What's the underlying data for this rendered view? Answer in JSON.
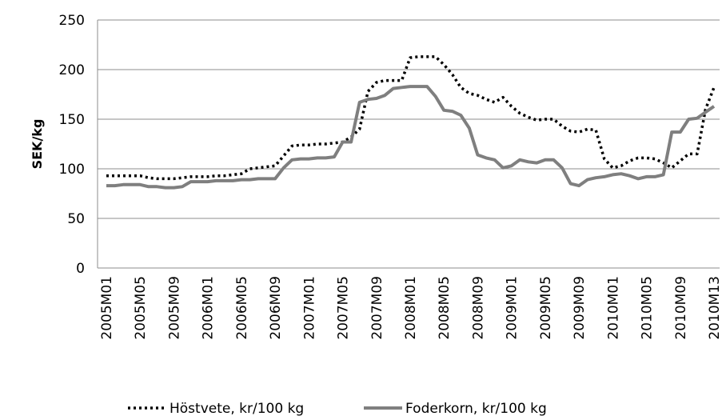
{
  "chart_data": {
    "type": "line",
    "y_label": "SEK/kg",
    "categories": [
      "2005M01",
      null,
      null,
      null,
      "2005M05",
      null,
      null,
      null,
      "2005M09",
      null,
      null,
      null,
      "2006M01",
      null,
      null,
      null,
      "2006M05",
      null,
      null,
      null,
      "2006M09",
      null,
      null,
      null,
      "2007M01",
      null,
      null,
      null,
      "2007M05",
      null,
      null,
      null,
      "2007M09",
      null,
      null,
      null,
      "2008M01",
      null,
      null,
      null,
      "2008M05",
      null,
      null,
      null,
      "2008M09",
      null,
      null,
      null,
      "2009M01",
      null,
      null,
      null,
      "2009M05",
      null,
      null,
      null,
      "2009M09",
      null,
      null,
      null,
      "2010M01",
      null,
      null,
      null,
      "2010M05",
      null,
      null,
      null,
      "2010M09",
      null,
      null,
      null,
      "2010M13"
    ],
    "series": [
      {
        "name": "Höstvete, kr/100 kg",
        "color": "#000000",
        "dash": "dotted",
        "values": [
          93,
          93,
          93,
          93,
          93,
          91,
          90,
          90,
          90,
          91,
          92,
          92,
          92,
          93,
          93,
          94,
          95,
          100,
          101,
          102,
          103,
          113,
          123,
          124,
          124,
          125,
          125,
          126,
          127,
          132,
          140,
          178,
          187,
          189,
          189,
          189,
          212,
          213,
          213,
          213,
          205,
          195,
          182,
          176,
          174,
          170,
          167,
          172,
          163,
          156,
          152,
          149,
          150,
          150,
          143,
          138,
          137,
          140,
          139,
          110,
          101,
          103,
          108,
          111,
          111,
          110,
          106,
          101,
          108,
          115,
          115,
          160,
          182
        ]
      },
      {
        "name": "Foderkorn, kr/100 kg",
        "color": "#7f7f7f",
        "dash": "solid",
        "values": [
          83,
          83,
          84,
          84,
          84,
          82,
          82,
          81,
          81,
          82,
          87,
          87,
          87,
          88,
          88,
          88,
          89,
          89,
          90,
          90,
          90,
          101,
          109,
          110,
          110,
          111,
          111,
          112,
          127,
          127,
          167,
          170,
          171,
          174,
          181,
          182,
          183,
          183,
          183,
          173,
          159,
          158,
          154,
          141,
          114,
          111,
          109,
          101,
          103,
          109,
          107,
          106,
          109,
          109,
          101,
          85,
          83,
          89,
          91,
          92,
          94,
          95,
          93,
          90,
          92,
          92,
          94,
          137,
          137,
          150,
          151,
          157,
          163
        ]
      }
    ],
    "ylim": [
      0,
      250
    ],
    "yticks": [
      0,
      50,
      100,
      150,
      200,
      250
    ],
    "grid": true,
    "legend": "bottom"
  }
}
